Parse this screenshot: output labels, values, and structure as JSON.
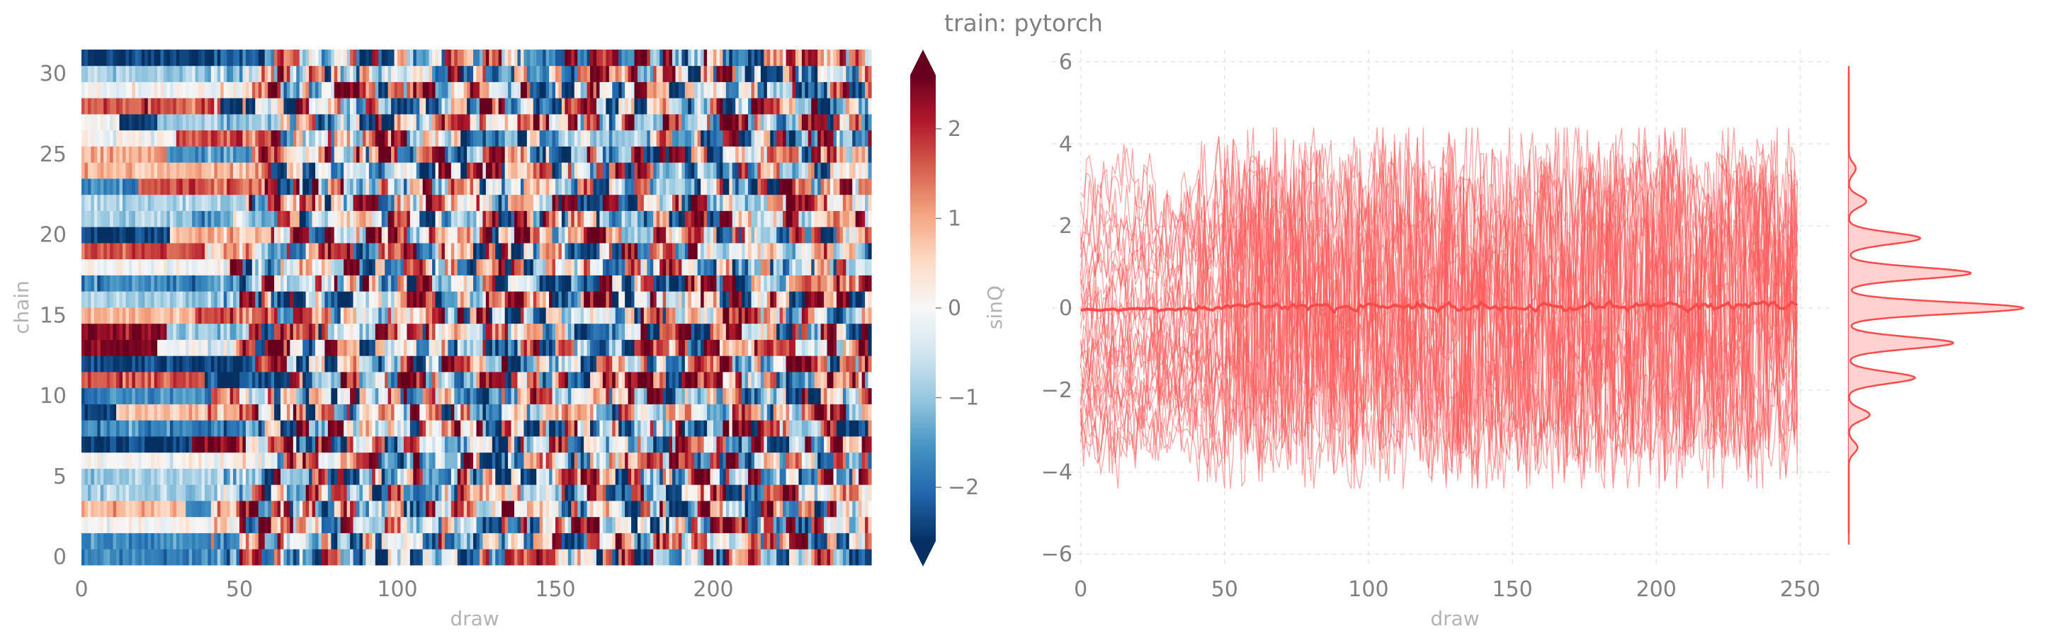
{
  "figure": {
    "title": "train: pytorch"
  },
  "chart_data": [
    {
      "type": "heatmap",
      "xlabel": "draw",
      "ylabel": "chain",
      "xlim": [
        0,
        250
      ],
      "ylim": [
        0,
        32
      ],
      "xticks": [
        0,
        50,
        100,
        150,
        200
      ],
      "yticks": [
        0,
        5,
        10,
        15,
        20,
        25,
        30
      ],
      "n_chains": 32,
      "n_draws": 250,
      "value_summary": {
        "approx_range": [
          -2.6,
          2.6
        ],
        "distribution": "multimodal, peaks near 0, ±0.85, ±1.7"
      },
      "colorscale": {
        "name": "RdBu_r",
        "low": "#053061",
        "mid": "#f7f7f7",
        "high": "#67001f"
      },
      "colorbar": {
        "label": "sinQ",
        "ticks": [
          -2,
          -1,
          0,
          1,
          2
        ],
        "tick_labels": [
          "−2",
          "−1",
          "0",
          "1",
          "2"
        ],
        "extend": "both"
      }
    },
    {
      "type": "line",
      "xlabel": "draw",
      "ylabel": "",
      "xlim": [
        -10,
        260
      ],
      "ylim": [
        -6.3,
        6.3
      ],
      "xticks": [
        0,
        50,
        100,
        150,
        200,
        250
      ],
      "yticks": [
        -6,
        -4,
        -2,
        0,
        2,
        4,
        6
      ],
      "ytick_labels": [
        "−6",
        "−4",
        "−2",
        "0",
        "2",
        "4",
        "6"
      ],
      "n_series": 32,
      "draw_range": [
        0,
        249
      ],
      "series_color": "#ff5a5a",
      "mean_series": {
        "approx_value": 0.05
      },
      "grid": true
    },
    {
      "type": "area",
      "orientation": "vertical-density",
      "y_range": [
        -5.5,
        5.9
      ],
      "peaks": [
        {
          "y": 0.0,
          "density": 1.0
        },
        {
          "y": 0.85,
          "density": 0.7
        },
        {
          "y": -0.85,
          "density": 0.6
        },
        {
          "y": 1.7,
          "density": 0.41
        },
        {
          "y": -1.7,
          "density": 0.38
        },
        {
          "y": 2.6,
          "density": 0.1
        },
        {
          "y": -2.6,
          "density": 0.12
        },
        {
          "y": 3.4,
          "density": 0.04
        },
        {
          "y": -3.4,
          "density": 0.05
        }
      ],
      "color": "#ff5a5a",
      "fill": "#ffd2d2"
    }
  ]
}
